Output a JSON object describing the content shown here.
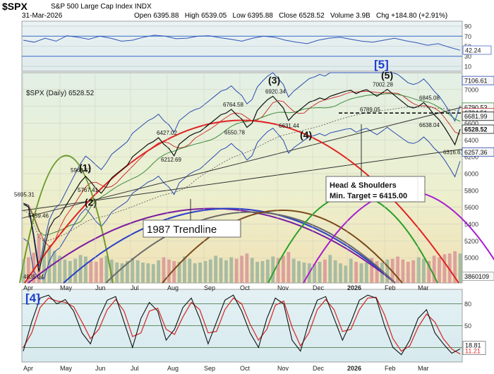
{
  "header": {
    "symbol": "$SPX",
    "name": "S&P 500 Large Cap Index",
    "exchange": "INDX",
    "date": "31-Mar-2026",
    "ohlc": "Open 6395.88   High 6539.05   Low 6395.88   Close 6528.52   Volume 3.9B   Chg +184.80 (+2.91%)"
  },
  "chart_data": [
    {
      "type": "line",
      "panel": "RSI",
      "ylim": [
        0,
        100
      ],
      "ticks": [
        10,
        30,
        50,
        70,
        90
      ],
      "levels": [
        30,
        70
      ],
      "last_value": "42.24",
      "values": [
        62,
        58,
        66,
        60,
        71,
        68,
        64,
        70,
        66,
        60,
        62,
        68,
        72,
        70,
        65,
        66,
        70,
        71,
        67,
        64,
        60,
        66,
        70,
        68,
        62,
        58,
        55,
        62,
        66,
        68,
        64,
        60,
        58,
        62,
        66,
        61,
        57,
        52,
        55,
        48,
        42
      ]
    },
    {
      "type": "line",
      "panel": "price",
      "title": "$SPX (Daily) 6528.52",
      "ylim": [
        4700,
        7200
      ],
      "y_ticks": [
        4800,
        5000,
        5200,
        5400,
        5600,
        5800,
        6000,
        6200,
        6400,
        6600,
        6800,
        7000
      ],
      "x_labels": [
        "Apr",
        "May",
        "Jun",
        "Jul",
        "Aug",
        "Sep",
        "Oct",
        "Nov",
        "Dec",
        "2026",
        "Feb",
        "Mar"
      ],
      "series": [
        {
          "values": [
            5650,
            5600,
            5250,
            4835,
            5100,
            5350,
            5459,
            5500,
            5600,
            5700,
            5800,
            5900,
            5968,
            5900,
            5820,
            5767,
            5850,
            5950,
            6000,
            6050,
            6100,
            6200,
            6250,
            6300,
            6350,
            6380,
            6427,
            6350,
            6300,
            6212,
            6350,
            6400,
            6450,
            6480,
            6500,
            6550,
            6600,
            6650,
            6700,
            6720,
            6764,
            6700,
            6650,
            6550,
            6600,
            6750,
            6820,
            6880,
            6920,
            6850,
            6780,
            6631,
            6700,
            6750,
            6800,
            6850,
            6870,
            6900,
            6880,
            6920,
            6940,
            6960,
            6980,
            6990,
            6950,
            6980,
            6999,
            6960,
            6920,
            6960,
            7002,
            6950,
            6900,
            6850,
            6800,
            6780,
            6800,
            6845,
            6780,
            6700,
            6638,
            6550,
            6450,
            6344,
            6528
          ]
        }
      ],
      "price_labels": [
        "5695.31",
        "5459.46",
        "5968.61",
        "5767.41",
        "4835.04",
        "6427.02",
        "6212.69",
        "6764.58",
        "6550.78",
        "6920.34",
        "6631.44",
        "7002.28",
        "6789.05",
        "6845.08",
        "6638.04",
        "6316.61"
      ],
      "axis_values": [
        "7106.61",
        "6790.53",
        "6724.51",
        "6681.99",
        "6528.52",
        "6257.36",
        "3860109"
      ],
      "wave_labels": [
        "(1)",
        "(2)",
        "(3)",
        "(4)",
        "(5)",
        "[5]"
      ],
      "annotations": [
        "1987 Trendline",
        "Head & Shoulders",
        "Min. Target = 6415.00"
      ],
      "volume": [
        3.1,
        3.4,
        4.0,
        6.5,
        5.9,
        4.8,
        4.2,
        3.6,
        3.1,
        2.9,
        3.2,
        3.7,
        3.5,
        3.0,
        2.8,
        3.3,
        3.6,
        3.1,
        2.7,
        2.6,
        2.9,
        3.3,
        3.0,
        2.7,
        2.6,
        2.5,
        3.0,
        3.4,
        3.1,
        2.9,
        2.8,
        3.5,
        3.2,
        2.6,
        2.7,
        2.9,
        3.1,
        3.6,
        3.3,
        3.0,
        3.4,
        3.2,
        3.6,
        3.9,
        3.3,
        2.8,
        2.9,
        3.1,
        3.5,
        3.3,
        3.6,
        4.1,
        3.2,
        2.9,
        2.7,
        2.6,
        2.5,
        2.8,
        3.1,
        3.7,
        3.0,
        2.6,
        2.3,
        3.2,
        2.8,
        2.6,
        2.7,
        3.3,
        2.9,
        2.7,
        3.1,
        3.2,
        3.5,
        3.1,
        2.8,
        3.0,
        3.4,
        3.2,
        2.9,
        3.6,
        3.4,
        3.8,
        3.9,
        4.2,
        3.9
      ]
    },
    {
      "type": "line",
      "panel": "Stochastic",
      "title": "[4]",
      "ylim": [
        0,
        100
      ],
      "ticks": [
        20,
        50,
        80
      ],
      "last_values": [
        "18.81",
        "11.21"
      ],
      "fast": [
        15,
        55,
        88,
        92,
        80,
        86,
        70,
        40,
        25,
        60,
        85,
        90,
        55,
        20,
        60,
        82,
        70,
        30,
        45,
        75,
        88,
        60,
        25,
        55,
        85,
        92,
        70,
        40,
        20,
        60,
        88,
        80,
        30,
        15,
        55,
        85,
        90,
        60,
        30,
        55,
        85,
        92,
        88,
        50,
        20,
        10,
        30,
        60,
        72,
        40,
        25,
        12,
        18
      ],
      "slow": [
        20,
        40,
        75,
        88,
        84,
        82,
        76,
        55,
        32,
        45,
        72,
        86,
        70,
        35,
        40,
        70,
        74,
        45,
        38,
        62,
        82,
        72,
        40,
        42,
        72,
        88,
        80,
        52,
        30,
        45,
        78,
        84,
        48,
        22,
        40,
        72,
        86,
        72,
        42,
        45,
        72,
        88,
        89,
        65,
        32,
        15,
        22,
        48,
        66,
        55,
        32,
        18,
        11
      ]
    }
  ]
}
